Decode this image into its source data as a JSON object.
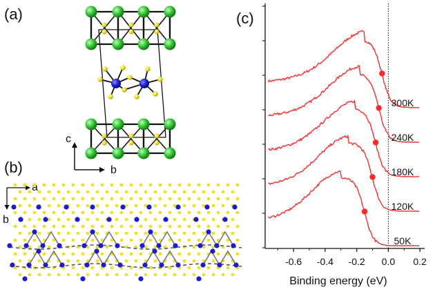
{
  "panels": {
    "a": {
      "label": "(a)",
      "axis_c": "c",
      "axis_b": "b"
    },
    "b": {
      "label": "(b)",
      "axis_a": "a",
      "axis_b": "b"
    },
    "c": {
      "label": "(c)"
    }
  },
  "colors": {
    "green_atom": "#2fc12f",
    "blue_atom": "#1b1bd6",
    "yellow_atom": "#f0e020",
    "curve": "#ff2a2a",
    "dashed": "#555555"
  },
  "chart_data": {
    "type": "line",
    "title": "",
    "xlabel": "Binding energy (eV)",
    "ylabel": "",
    "xlim": [
      -0.78,
      0.23
    ],
    "xticks": [
      -0.6,
      -0.4,
      -0.2,
      0.0,
      0.2
    ],
    "xtick_labels": [
      "-0.6",
      "-0.4",
      "-0.2",
      "0.0",
      "0.2"
    ],
    "fermi_level": 0.0,
    "series": [
      {
        "name": "300K",
        "label": "300K",
        "offset": 4,
        "peak": -0.15,
        "edge": -0.04,
        "fwhm": 0.36
      },
      {
        "name": "240K",
        "label": "240K",
        "offset": 3,
        "peak": -0.18,
        "edge": -0.06,
        "fwhm": 0.36
      },
      {
        "name": "180K",
        "label": "180K",
        "offset": 2,
        "peak": -0.21,
        "edge": -0.08,
        "fwhm": 0.36
      },
      {
        "name": "120K",
        "label": "120K",
        "offset": 1,
        "peak": -0.25,
        "edge": -0.1,
        "fwhm": 0.35
      },
      {
        "name": "50K",
        "label": "50K",
        "offset": 0,
        "peak": -0.3,
        "edge": -0.15,
        "fwhm": 0.34
      }
    ]
  }
}
